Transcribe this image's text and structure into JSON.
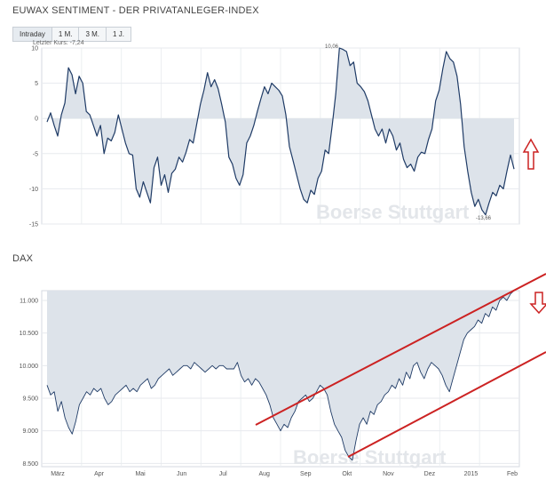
{
  "header": {
    "title": "EUWAX SENTIMENT - DER PRIVATANLEGER-INDEX"
  },
  "tabs": [
    {
      "label": "Intraday",
      "active": true
    },
    {
      "label": "1 M.",
      "active": false
    },
    {
      "label": "3 M.",
      "active": false
    },
    {
      "label": "1 J.",
      "active": false
    }
  ],
  "last_price_label": "Letzter Kurs: -7,24",
  "watermark": "Boerse Stuttgart",
  "dax_title": "DAX",
  "colors": {
    "line": "#1f3b66",
    "fill": "#dde3ea",
    "trend": "#cc2222",
    "arrow": "#cc2222"
  },
  "chart_data": [
    {
      "type": "area",
      "title": "EUWAX SENTIMENT - DER PRIVATANLEGER-INDEX",
      "ylim": [
        -15,
        10
      ],
      "yticks": [
        "10",
        "5",
        "0",
        "-5",
        "-10",
        "-15"
      ],
      "annotations": {
        "max": "10,06",
        "min": "-13,66"
      },
      "baseline": 0,
      "y": [
        -0.5,
        0.8,
        -1.0,
        -2.5,
        0.5,
        2.2,
        7.2,
        6.2,
        3.5,
        6.0,
        5.0,
        1.0,
        0.5,
        -1.0,
        -2.5,
        -1.0,
        -5.0,
        -2.8,
        -3.2,
        -2.0,
        0.5,
        -1.5,
        -3.5,
        -5.0,
        -5.2,
        -10.0,
        -11.2,
        -9.0,
        -10.5,
        -12.0,
        -7.0,
        -5.5,
        -9.5,
        -8.0,
        -10.5,
        -7.8,
        -7.2,
        -5.5,
        -6.2,
        -4.8,
        -3.0,
        -3.5,
        -0.8,
        2.0,
        4.0,
        6.5,
        4.5,
        5.5,
        4.2,
        2.0,
        -0.5,
        -5.5,
        -6.5,
        -8.5,
        -9.5,
        -8.0,
        -3.5,
        -2.5,
        -1.0,
        1.0,
        2.8,
        4.5,
        3.5,
        5.0,
        4.5,
        4.0,
        3.2,
        0.5,
        -4.0,
        -6.0,
        -8.0,
        -10.0,
        -11.5,
        -12.0,
        -10.2,
        -10.8,
        -8.5,
        -7.5,
        -4.5,
        -5.0,
        -1.0,
        3.5,
        10.0,
        9.8,
        9.5,
        7.5,
        8.0,
        5.0,
        4.5,
        3.8,
        2.5,
        0.5,
        -1.5,
        -2.5,
        -1.5,
        -3.5,
        -1.5,
        -2.5,
        -4.5,
        -3.5,
        -5.8,
        -7.0,
        -6.5,
        -7.5,
        -5.5,
        -4.8,
        -5.0,
        -3.0,
        -1.5,
        2.5,
        4.0,
        7.0,
        9.5,
        8.5,
        8.0,
        6.0,
        2.0,
        -4.0,
        -7.5,
        -10.5,
        -12.5,
        -11.5,
        -13.0,
        -13.7,
        -12.0,
        -10.5,
        -11.0,
        -9.5,
        -10.0,
        -7.5,
        -5.2,
        -7.2
      ]
    },
    {
      "type": "area",
      "title": "DAX",
      "ylim": [
        8450,
        11150
      ],
      "yticks": [
        "11.000",
        "10.500",
        "10.000",
        "9.500",
        "9.000",
        "8.500"
      ],
      "x_labels": [
        "März",
        "Apr",
        "Mai",
        "Jun",
        "Jul",
        "Aug",
        "Sep",
        "Okt",
        "Nov",
        "Dez",
        "2015",
        "Feb"
      ],
      "y": [
        9700,
        9550,
        9600,
        9300,
        9450,
        9200,
        9050,
        8950,
        9150,
        9400,
        9500,
        9600,
        9550,
        9650,
        9600,
        9650,
        9500,
        9400,
        9450,
        9550,
        9600,
        9650,
        9700,
        9600,
        9650,
        9600,
        9700,
        9750,
        9800,
        9650,
        9700,
        9800,
        9850,
        9900,
        9950,
        9850,
        9900,
        9950,
        10000,
        10000,
        9950,
        10050,
        10000,
        9950,
        9900,
        9950,
        10000,
        9950,
        10000,
        10000,
        9950,
        9950,
        9950,
        10050,
        9850,
        9750,
        9800,
        9700,
        9800,
        9750,
        9650,
        9550,
        9400,
        9200,
        9100,
        9000,
        9100,
        9050,
        9200,
        9300,
        9450,
        9500,
        9550,
        9450,
        9500,
        9600,
        9700,
        9650,
        9550,
        9300,
        9100,
        9000,
        8900,
        8700,
        8600,
        8550,
        8850,
        9100,
        9200,
        9100,
        9300,
        9250,
        9400,
        9450,
        9550,
        9600,
        9700,
        9650,
        9800,
        9700,
        9900,
        9800,
        10000,
        10050,
        9900,
        9800,
        9950,
        10050,
        10000,
        9950,
        9850,
        9700,
        9600,
        9800,
        10000,
        10200,
        10400,
        10500,
        10550,
        10600,
        10700,
        10650,
        10800,
        10750,
        10900,
        10850,
        11000,
        11050,
        11000,
        11100,
        11150
      ]
    }
  ]
}
